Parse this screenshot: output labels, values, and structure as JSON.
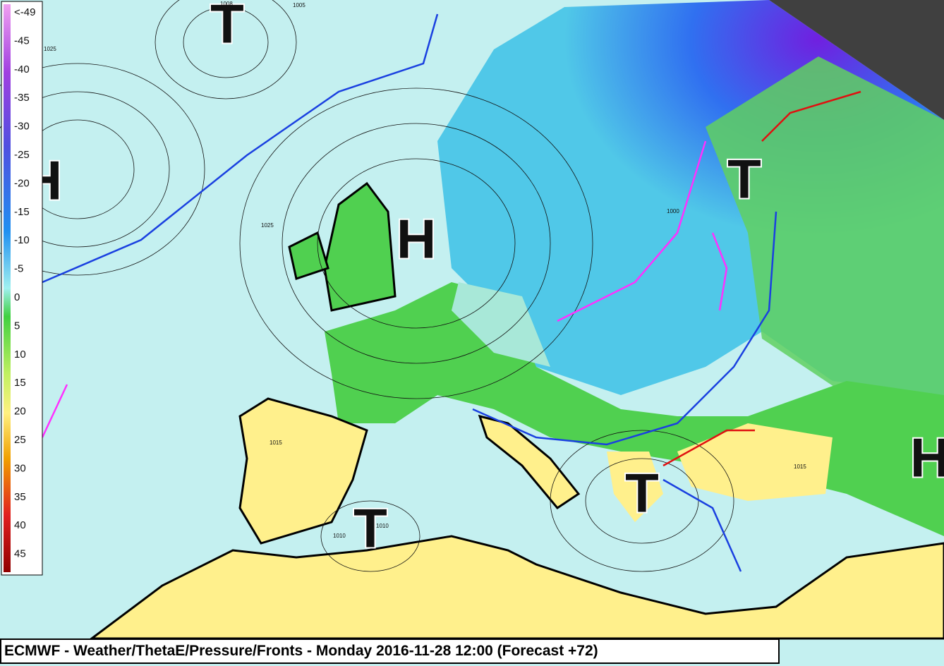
{
  "title": "ECMWF - Weather/ThetaE/Pressure/Fronts - Monday 2016-11-28 12:00 (Forecast +72)",
  "legend": {
    "labels": [
      "<-49",
      "-45",
      "-40",
      "-35",
      "-30",
      "-25",
      "-20",
      "-15",
      "-10",
      "-5",
      "0",
      "5",
      "10",
      "15",
      "20",
      "25",
      "30",
      "35",
      "40",
      "45"
    ]
  },
  "pressure_systems": [
    {
      "label": "T"
    },
    {
      "label": "H"
    },
    {
      "label": "H"
    },
    {
      "label": "T"
    },
    {
      "label": "T"
    },
    {
      "label": "T"
    },
    {
      "label": "H"
    }
  ],
  "isobar_labels": [
    "1025",
    "1025",
    "1015",
    "1010",
    "1010",
    "1000",
    "1015",
    "1005",
    "1008"
  ]
}
